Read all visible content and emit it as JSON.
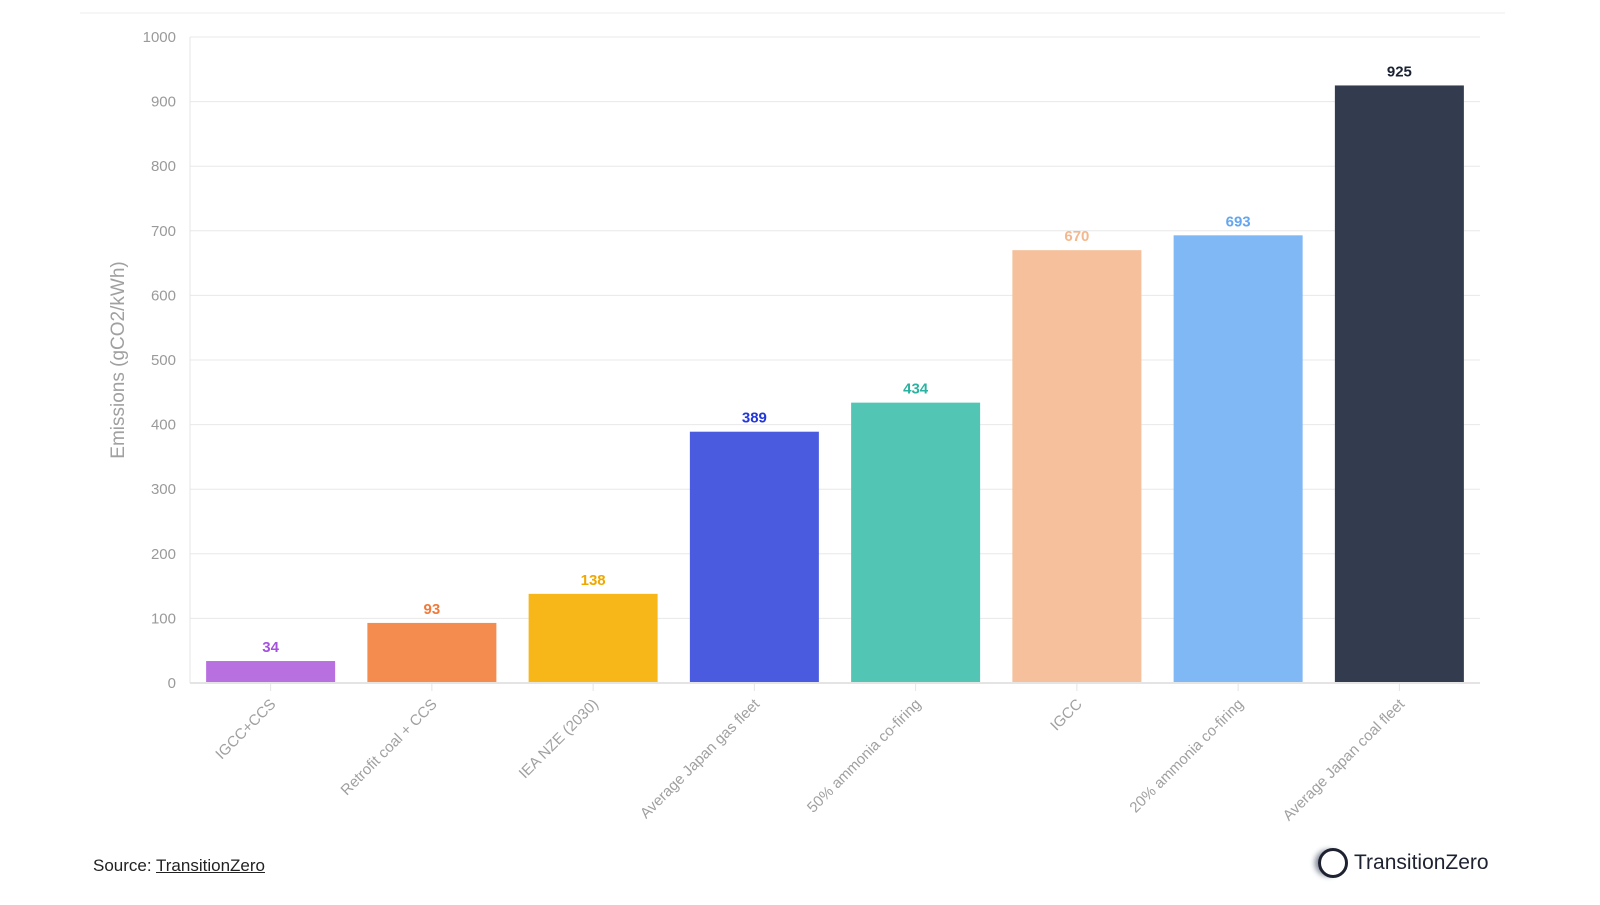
{
  "chart_data": {
    "type": "bar",
    "title": "",
    "xlabel": "",
    "ylabel": "Emissions (gCO2/kWh)",
    "ylim": [
      0,
      1000
    ],
    "yticks": [
      0,
      100,
      200,
      300,
      400,
      500,
      600,
      700,
      800,
      900,
      1000
    ],
    "grid": true,
    "categories": [
      "IGCC+CCS",
      "Retrofit coal + CCS",
      "IEA NZE (2030)",
      "Average Japan gas fleet",
      "50% ammonia co-firing",
      "IGCC",
      "20% ammonia co-firing",
      "Average Japan coal fleet"
    ],
    "values": [
      34,
      93,
      138,
      389,
      434,
      670,
      693,
      925
    ],
    "bar_colors": [
      "#b86fe0",
      "#f48c4f",
      "#f7b718",
      "#4a5be0",
      "#52c5b5",
      "#f5c09b",
      "#80b7f5",
      "#333c4f"
    ],
    "label_colors": [
      "#a650e0",
      "#f07a3a",
      "#f0a800",
      "#2238dd",
      "#2ab3a0",
      "#f4b88e",
      "#64a6f0",
      "#1a2233"
    ]
  },
  "footer": {
    "source_prefix": "Source: ",
    "source_link": "TransitionZero",
    "logo_text": "TransitionZero"
  }
}
